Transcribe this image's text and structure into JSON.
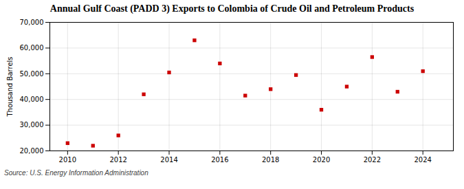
{
  "chart_data": {
    "type": "scatter",
    "title": "Annual Gulf Coast (PADD 3) Exports to Colombia of Crude Oil and Petroleum Products",
    "ylabel": "Thousand Barrels",
    "annotations": [
      "Source: U.S. Energy Information Administration"
    ],
    "x": [
      2010,
      2011,
      2012,
      2013,
      2014,
      2015,
      2016,
      2017,
      2018,
      2019,
      2020,
      2021,
      2022,
      2023,
      2024
    ],
    "values": [
      23000,
      22000,
      26000,
      42000,
      50500,
      63000,
      54000,
      41500,
      44000,
      49500,
      36000,
      45000,
      56500,
      43000,
      51000
    ],
    "color": "#cc0000",
    "marker": "square",
    "xlim": [
      2009.3,
      2025.2
    ],
    "xticks": [
      2010,
      2012,
      2014,
      2016,
      2018,
      2020,
      2022,
      2024
    ],
    "ylim": [
      20000,
      70000
    ],
    "yticks": [
      {
        "value": 20000,
        "label": "20,000"
      },
      {
        "value": 30000,
        "label": "30,000"
      },
      {
        "value": 40000,
        "label": "40,000"
      },
      {
        "value": 50000,
        "label": "50,000"
      },
      {
        "value": 60000,
        "label": "60,000"
      },
      {
        "value": 70000,
        "label": "70,000"
      }
    ],
    "grid": true
  }
}
